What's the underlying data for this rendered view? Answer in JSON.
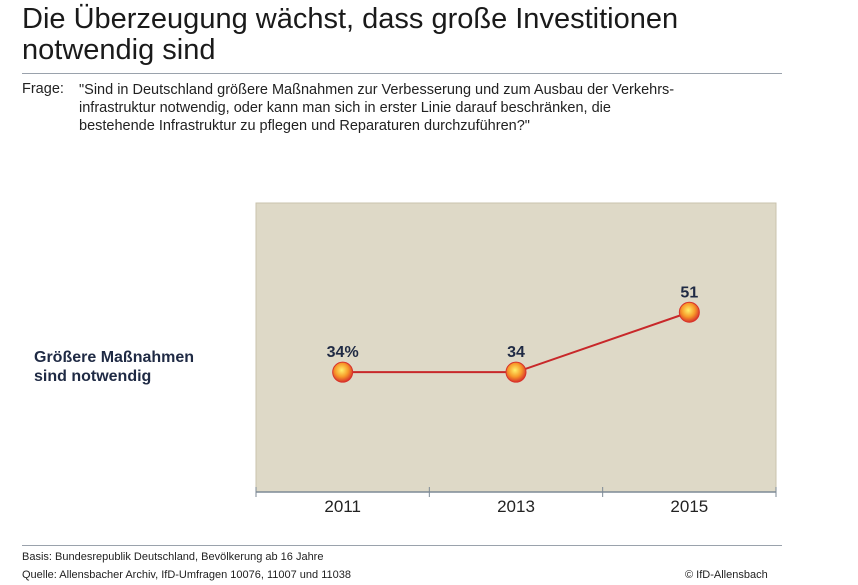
{
  "title_line1": "Die Überzeugung wächst, dass große Investitionen",
  "title_line2": "notwendig sind",
  "question_label": "Frage:",
  "question_lines": [
    "\"Sind in Deutschland größere Maßnahmen zur Verbesserung und zum Ausbau der Verkehrs-",
    "infrastruktur notwendig, oder kann man sich in erster Linie darauf beschränken, die",
    "bestehende Infrastruktur zu pflegen und Reparaturen durchzuführen?\""
  ],
  "chart_data": {
    "type": "line",
    "categories": [
      "2011",
      "2013",
      "2015"
    ],
    "series": [
      {
        "name": "Größere Maßnahmen sind notwendig",
        "values": [
          34,
          34,
          51
        ]
      }
    ],
    "data_labels": [
      "34%",
      "34",
      "51"
    ],
    "ylim": [
      0,
      82
    ],
    "grid": false,
    "series_label_lines": [
      "Größere Maßnahmen",
      "sind notwendig"
    ],
    "colors": {
      "plot_bg": "#ded9c7",
      "line": "#c8282a",
      "marker": "#f5a623",
      "label": "#1f2a44"
    }
  },
  "footer": {
    "basis": "Basis: Bundesrepublik Deutschland, Bevölkerung ab 16 Jahre",
    "source": "Quelle: Allensbacher Archiv, IfD-Umfragen 10076, 11007 und 11038",
    "copyright": "© IfD-Allensbach"
  }
}
